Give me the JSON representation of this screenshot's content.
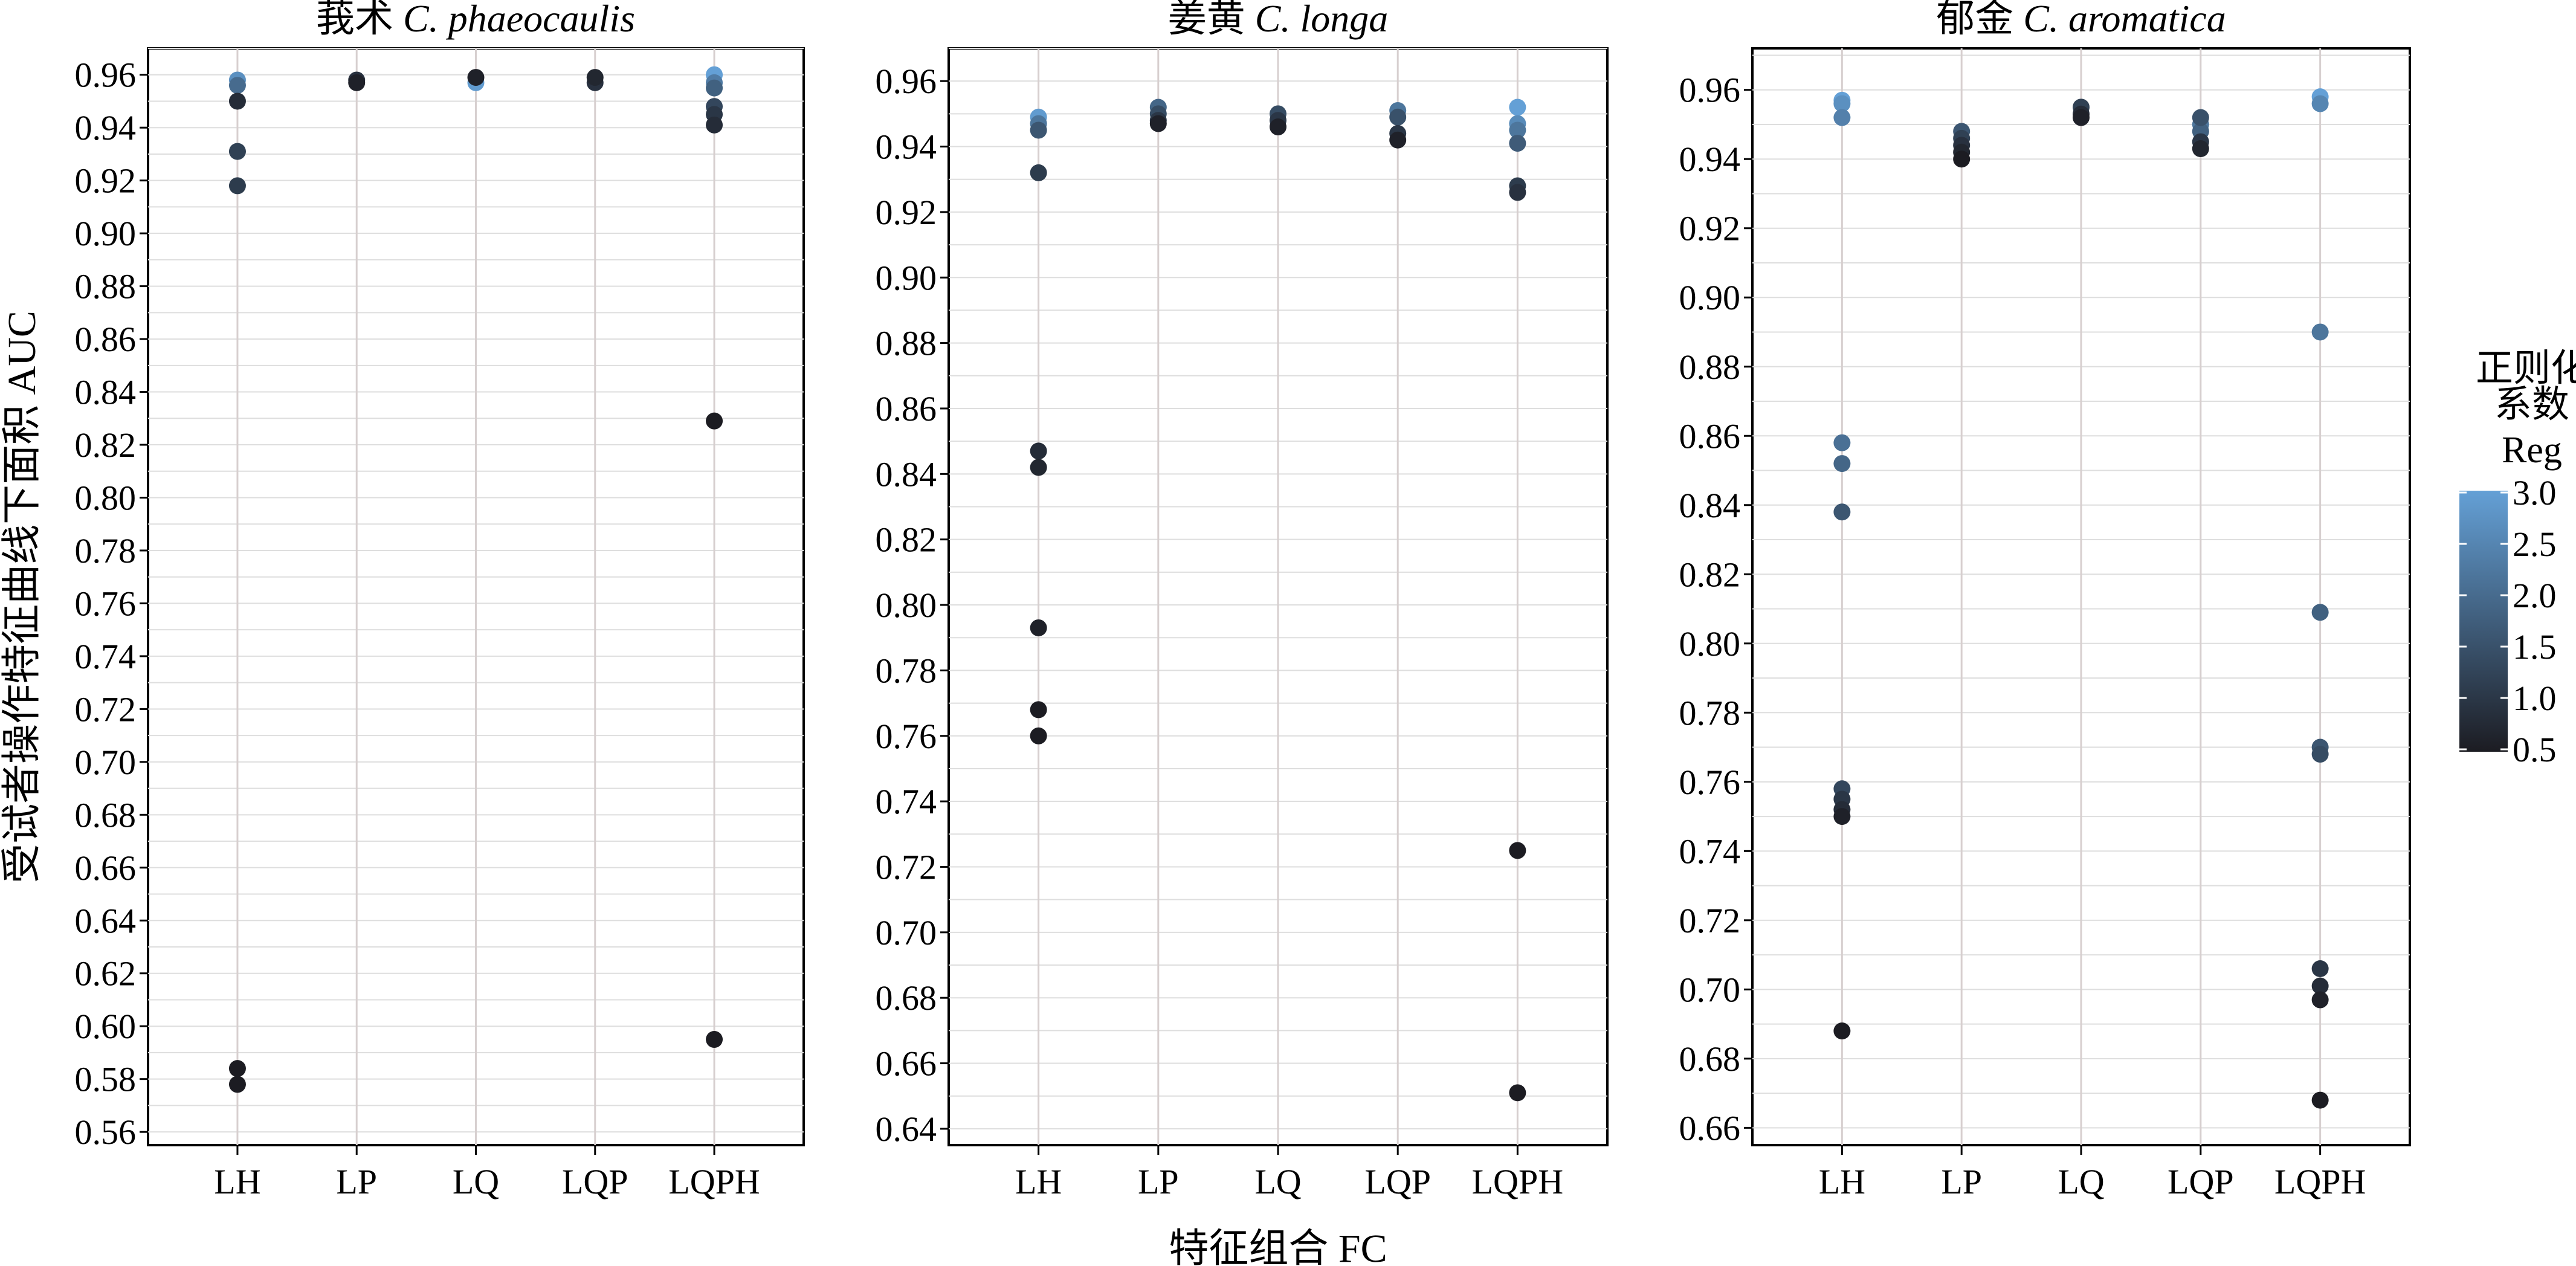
{
  "chart_data": {
    "type": "scatter",
    "xlabel": "特征组合 FC",
    "ylabel": "受试者操作特征曲线下面积 AUC",
    "legend": {
      "title_lines": [
        "正则化",
        "系数",
        "Reg"
      ],
      "ticks": [
        "3.0",
        "2.5",
        "2.0",
        "1.5",
        "1.0",
        "0.5"
      ],
      "range": [
        0.5,
        3.0
      ],
      "color_low": "#1c1c22",
      "color_high": "#64a0d6",
      "placement": "right"
    },
    "panels": [
      {
        "title_cn": "莪术",
        "title_latin": "C. phaeocaulis",
        "categories": [
          "LH",
          "LP",
          "LQ",
          "LQP",
          "LQPH"
        ],
        "ylim": [
          0.555,
          0.97
        ],
        "yticks": [
          "0.56",
          "0.58",
          "0.60",
          "0.62",
          "0.64",
          "0.66",
          "0.68",
          "0.70",
          "0.72",
          "0.74",
          "0.76",
          "0.78",
          "0.80",
          "0.82",
          "0.84",
          "0.86",
          "0.88",
          "0.90",
          "0.92",
          "0.94",
          "0.96"
        ],
        "points": [
          {
            "fc": "LH",
            "auc": 0.958,
            "reg": 2.7
          },
          {
            "fc": "LH",
            "auc": 0.956,
            "reg": 2.0
          },
          {
            "fc": "LH",
            "auc": 0.95,
            "reg": 0.8
          },
          {
            "fc": "LH",
            "auc": 0.931,
            "reg": 1.2
          },
          {
            "fc": "LH",
            "auc": 0.918,
            "reg": 1.1
          },
          {
            "fc": "LH",
            "auc": 0.584,
            "reg": 0.5
          },
          {
            "fc": "LH",
            "auc": 0.578,
            "reg": 0.5
          },
          {
            "fc": "LP",
            "auc": 0.958,
            "reg": 0.9
          },
          {
            "fc": "LP",
            "auc": 0.957,
            "reg": 0.6
          },
          {
            "fc": "LQ",
            "auc": 0.959,
            "reg": 0.6
          },
          {
            "fc": "LQ",
            "auc": 0.957,
            "reg": 2.9
          },
          {
            "fc": "LQP",
            "auc": 0.959,
            "reg": 0.7
          },
          {
            "fc": "LQP",
            "auc": 0.957,
            "reg": 0.9
          },
          {
            "fc": "LQPH",
            "auc": 0.96,
            "reg": 3.0
          },
          {
            "fc": "LQPH",
            "auc": 0.957,
            "reg": 2.3
          },
          {
            "fc": "LQPH",
            "auc": 0.955,
            "reg": 1.8
          },
          {
            "fc": "LQPH",
            "auc": 0.948,
            "reg": 1.3
          },
          {
            "fc": "LQPH",
            "auc": 0.945,
            "reg": 1.0
          },
          {
            "fc": "LQPH",
            "auc": 0.941,
            "reg": 0.8
          },
          {
            "fc": "LQPH",
            "auc": 0.829,
            "reg": 0.5
          },
          {
            "fc": "LQPH",
            "auc": 0.595,
            "reg": 0.5
          }
        ]
      },
      {
        "title_cn": "姜黄",
        "title_latin": "C. longa",
        "categories": [
          "LH",
          "LP",
          "LQ",
          "LQP",
          "LQPH"
        ],
        "ylim": [
          0.635,
          0.97
        ],
        "yticks": [
          "0.64",
          "0.66",
          "0.68",
          "0.70",
          "0.72",
          "0.74",
          "0.76",
          "0.78",
          "0.80",
          "0.82",
          "0.84",
          "0.86",
          "0.88",
          "0.90",
          "0.92",
          "0.94",
          "0.96"
        ],
        "points": [
          {
            "fc": "LH",
            "auc": 0.949,
            "reg": 2.9
          },
          {
            "fc": "LH",
            "auc": 0.947,
            "reg": 2.2
          },
          {
            "fc": "LH",
            "auc": 0.945,
            "reg": 1.6
          },
          {
            "fc": "LH",
            "auc": 0.932,
            "reg": 1.1
          },
          {
            "fc": "LH",
            "auc": 0.847,
            "reg": 0.8
          },
          {
            "fc": "LH",
            "auc": 0.842,
            "reg": 0.7
          },
          {
            "fc": "LH",
            "auc": 0.793,
            "reg": 0.6
          },
          {
            "fc": "LH",
            "auc": 0.768,
            "reg": 0.5
          },
          {
            "fc": "LH",
            "auc": 0.76,
            "reg": 0.5
          },
          {
            "fc": "LP",
            "auc": 0.952,
            "reg": 1.9
          },
          {
            "fc": "LP",
            "auc": 0.95,
            "reg": 1.4
          },
          {
            "fc": "LP",
            "auc": 0.948,
            "reg": 1.0
          },
          {
            "fc": "LP",
            "auc": 0.947,
            "reg": 0.6
          },
          {
            "fc": "LQ",
            "auc": 0.95,
            "reg": 1.4
          },
          {
            "fc": "LQ",
            "auc": 0.948,
            "reg": 1.0
          },
          {
            "fc": "LQ",
            "auc": 0.946,
            "reg": 0.6
          },
          {
            "fc": "LQP",
            "auc": 0.951,
            "reg": 2.2
          },
          {
            "fc": "LQP",
            "auc": 0.949,
            "reg": 1.5
          },
          {
            "fc": "LQP",
            "auc": 0.944,
            "reg": 1.0
          },
          {
            "fc": "LQP",
            "auc": 0.942,
            "reg": 0.6
          },
          {
            "fc": "LQPH",
            "auc": 0.952,
            "reg": 3.0
          },
          {
            "fc": "LQPH",
            "auc": 0.947,
            "reg": 2.6
          },
          {
            "fc": "LQPH",
            "auc": 0.945,
            "reg": 2.2
          },
          {
            "fc": "LQPH",
            "auc": 0.941,
            "reg": 1.7
          },
          {
            "fc": "LQPH",
            "auc": 0.928,
            "reg": 1.1
          },
          {
            "fc": "LQPH",
            "auc": 0.926,
            "reg": 0.9
          },
          {
            "fc": "LQPH",
            "auc": 0.725,
            "reg": 0.5
          },
          {
            "fc": "LQPH",
            "auc": 0.651,
            "reg": 0.5
          }
        ]
      },
      {
        "title_cn": "郁金",
        "title_latin": "C. aromatica",
        "categories": [
          "LH",
          "LP",
          "LQ",
          "LQP",
          "LQPH"
        ],
        "ylim": [
          0.655,
          0.972
        ],
        "yticks": [
          "0.66",
          "0.68",
          "0.70",
          "0.72",
          "0.74",
          "0.76",
          "0.78",
          "0.80",
          "0.82",
          "0.84",
          "0.86",
          "0.88",
          "0.90",
          "0.92",
          "0.94",
          "0.96"
        ],
        "points": [
          {
            "fc": "LH",
            "auc": 0.957,
            "reg": 3.0
          },
          {
            "fc": "LH",
            "auc": 0.956,
            "reg": 2.7
          },
          {
            "fc": "LH",
            "auc": 0.952,
            "reg": 2.4
          },
          {
            "fc": "LH",
            "auc": 0.858,
            "reg": 2.1
          },
          {
            "fc": "LH",
            "auc": 0.852,
            "reg": 1.9
          },
          {
            "fc": "LH",
            "auc": 0.838,
            "reg": 1.6
          },
          {
            "fc": "LH",
            "auc": 0.758,
            "reg": 1.3
          },
          {
            "fc": "LH",
            "auc": 0.755,
            "reg": 1.0
          },
          {
            "fc": "LH",
            "auc": 0.752,
            "reg": 0.8
          },
          {
            "fc": "LH",
            "auc": 0.75,
            "reg": 0.6
          },
          {
            "fc": "LH",
            "auc": 0.688,
            "reg": 0.5
          },
          {
            "fc": "LP",
            "auc": 0.948,
            "reg": 1.6
          },
          {
            "fc": "LP",
            "auc": 0.946,
            "reg": 1.2
          },
          {
            "fc": "LP",
            "auc": 0.944,
            "reg": 0.9
          },
          {
            "fc": "LP",
            "auc": 0.942,
            "reg": 0.7
          },
          {
            "fc": "LP",
            "auc": 0.94,
            "reg": 0.5
          },
          {
            "fc": "LQ",
            "auc": 0.955,
            "reg": 1.2
          },
          {
            "fc": "LQ",
            "auc": 0.953,
            "reg": 0.8
          },
          {
            "fc": "LQ",
            "auc": 0.952,
            "reg": 0.6
          },
          {
            "fc": "LQP",
            "auc": 0.952,
            "reg": 1.5
          },
          {
            "fc": "LQP",
            "auc": 0.95,
            "reg": 2.2
          },
          {
            "fc": "LQP",
            "auc": 0.948,
            "reg": 1.8
          },
          {
            "fc": "LQP",
            "auc": 0.945,
            "reg": 1.0
          },
          {
            "fc": "LQP",
            "auc": 0.943,
            "reg": 0.7
          },
          {
            "fc": "LQPH",
            "auc": 0.958,
            "reg": 3.0
          },
          {
            "fc": "LQPH",
            "auc": 0.956,
            "reg": 2.5
          },
          {
            "fc": "LQPH",
            "auc": 0.89,
            "reg": 2.2
          },
          {
            "fc": "LQPH",
            "auc": 0.809,
            "reg": 1.8
          },
          {
            "fc": "LQPH",
            "auc": 0.77,
            "reg": 1.6
          },
          {
            "fc": "LQPH",
            "auc": 0.768,
            "reg": 1.4
          },
          {
            "fc": "LQPH",
            "auc": 0.706,
            "reg": 1.0
          },
          {
            "fc": "LQPH",
            "auc": 0.701,
            "reg": 0.8
          },
          {
            "fc": "LQPH",
            "auc": 0.697,
            "reg": 0.6
          },
          {
            "fc": "LQPH",
            "auc": 0.668,
            "reg": 0.5
          }
        ]
      }
    ]
  }
}
